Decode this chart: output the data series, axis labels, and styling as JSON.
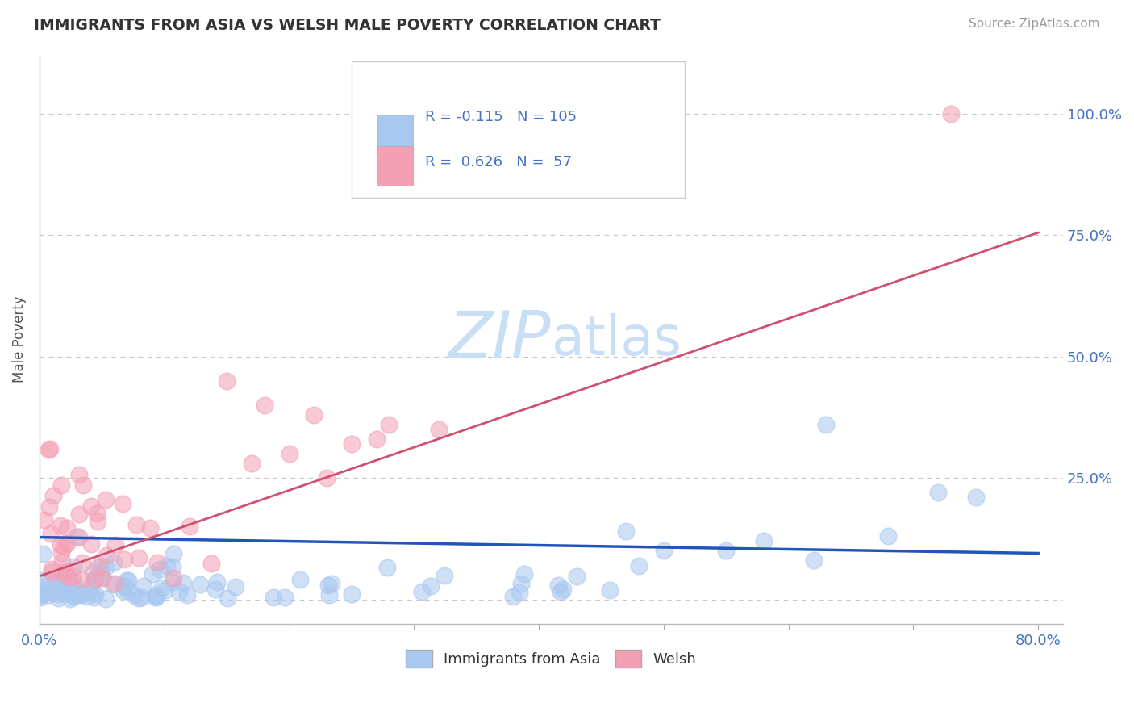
{
  "title": "IMMIGRANTS FROM ASIA VS WELSH MALE POVERTY CORRELATION CHART",
  "source_text": "Source: ZipAtlas.com",
  "xlabel": "",
  "ylabel": "Male Poverty",
  "xlim": [
    0.0,
    0.82
  ],
  "ylim": [
    -0.05,
    1.12
  ],
  "x_ticks": [
    0.0,
    0.1,
    0.2,
    0.3,
    0.4,
    0.5,
    0.6,
    0.7,
    0.8
  ],
  "x_tick_labels": [
    "0.0%",
    "",
    "",
    "",
    "",
    "",
    "",
    "",
    "80.0%"
  ],
  "y_ticks": [
    0.0,
    0.25,
    0.5,
    0.75,
    1.0
  ],
  "y_tick_labels_right": [
    "",
    "25.0%",
    "50.0%",
    "75.0%",
    "100.0%"
  ],
  "blue_color": "#A8C8F0",
  "pink_color": "#F4A0B4",
  "blue_line_color": "#2255BB",
  "pink_line_color": "#D05070",
  "title_color": "#333333",
  "label_color": "#4472c4",
  "grid_color": "#C8C8C8",
  "background_color": "#FFFFFF",
  "blue_n": 105,
  "pink_n": 57,
  "blue_r": -0.115,
  "pink_r": 0.626,
  "pink_line_x0": 0.0,
  "pink_line_y0": 0.048,
  "pink_line_x1": 0.8,
  "pink_line_y1": 0.755,
  "blue_line_x0": 0.0,
  "blue_line_y0": 0.128,
  "blue_line_x1": 0.8,
  "blue_line_y1": 0.095
}
